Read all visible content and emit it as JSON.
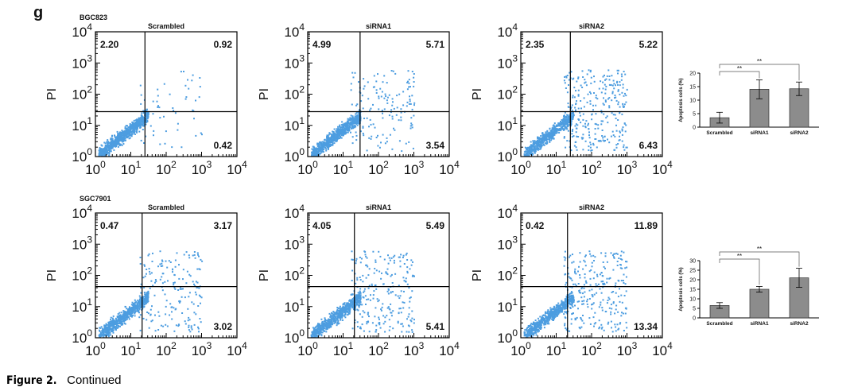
{
  "figure": {
    "label": "g",
    "caption": {
      "prefix": "Figure 2.",
      "text": "Continued"
    },
    "axis": {
      "ylabel": "PI",
      "base": "10",
      "ticks": [
        "0",
        "1",
        "2",
        "3",
        "4"
      ]
    },
    "rows": [
      {
        "cell_line": "BGC823",
        "plots": [
          {
            "title": "Scrambled",
            "ul": "2.20",
            "ur": "0.92",
            "lr": "0.42"
          },
          {
            "title": "siRNA1",
            "ul": "4.99",
            "ur": "5.71",
            "lr": "3.54"
          },
          {
            "title": "siRNA2",
            "ul": "2.35",
            "ur": "5.22",
            "lr": "6.43"
          }
        ],
        "bar_chart": {
          "type": "bar",
          "ylabel": "Apoptosis cells (%)",
          "categories": [
            "Scrambled",
            "siRNA1",
            "siRNA2"
          ],
          "values": [
            3.5,
            14,
            14.2
          ],
          "errors": [
            2,
            3.5,
            2.5
          ],
          "ylim": [
            0,
            20
          ],
          "yticks": [
            0,
            5,
            10,
            15,
            20
          ],
          "color": "#8c8c8c",
          "significance": [
            "**",
            "**"
          ]
        }
      },
      {
        "cell_line": "SGC7901",
        "plots": [
          {
            "title": "Scrambled",
            "ul": "0.47",
            "ur": "3.17",
            "lr": "3.02"
          },
          {
            "title": "siRNA1",
            "ul": "4.05",
            "ur": "5.49",
            "lr": "5.41"
          },
          {
            "title": "siRNA2",
            "ul": "0.42",
            "ur": "11.89",
            "lr": "13.34"
          }
        ],
        "bar_chart": {
          "type": "bar",
          "ylabel": "Apoptosis cells (%)",
          "categories": [
            "Scrambled",
            "siRNA1",
            "siRNA2"
          ],
          "values": [
            6.5,
            15,
            21
          ],
          "errors": [
            1.5,
            1.5,
            5
          ],
          "ylim": [
            0,
            30
          ],
          "yticks": [
            0,
            5,
            10,
            15,
            20,
            25,
            30
          ],
          "color": "#8c8c8c",
          "significance": [
            "**",
            "**"
          ]
        }
      }
    ]
  }
}
